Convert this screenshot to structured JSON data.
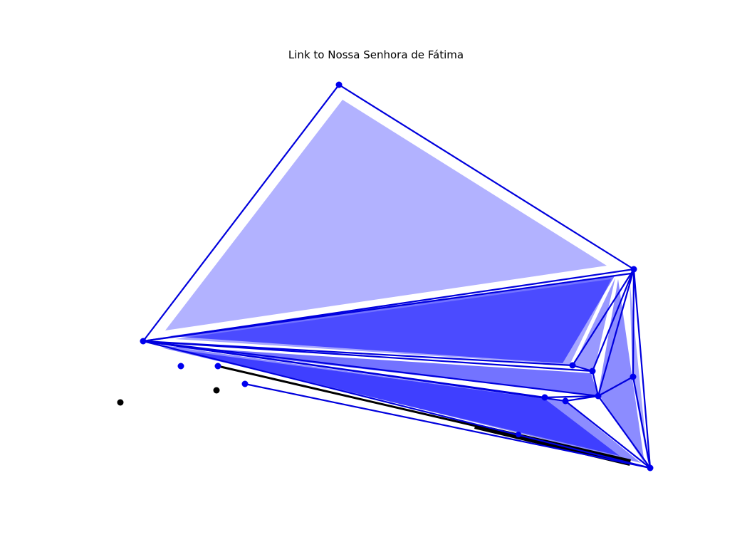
{
  "title": "Link to Nossa Senhora de Fátima",
  "colors": {
    "edge": "#0000dd",
    "node": "#0000ee",
    "fill": "#0000ff",
    "black": "#000000"
  }
}
